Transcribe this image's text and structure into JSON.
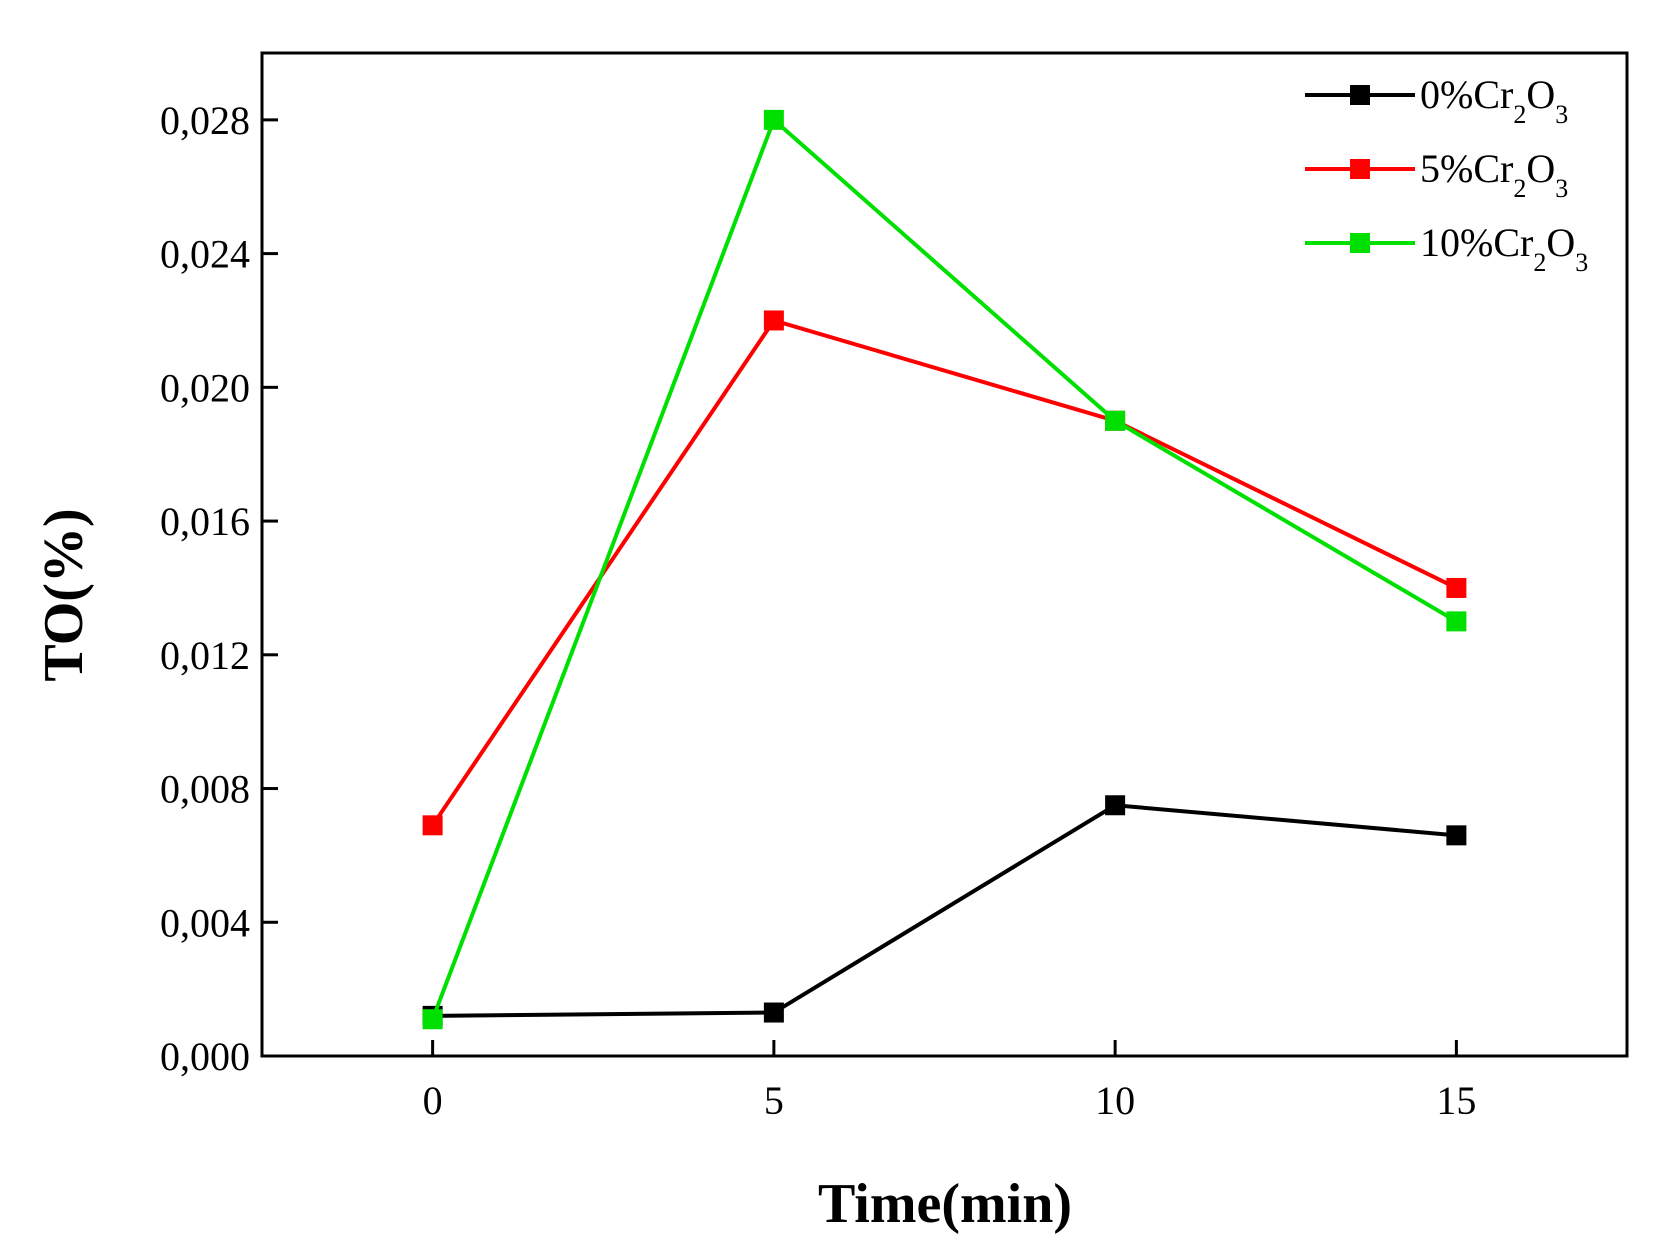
{
  "chart_data": {
    "type": "line",
    "title": "",
    "xlabel": "Time(min)",
    "ylabel": "TO(%)",
    "x": [
      0,
      5,
      10,
      15
    ],
    "xlim": [
      -2.5,
      17.5
    ],
    "ylim": [
      0.0,
      0.03
    ],
    "xticks": [
      0,
      5,
      10,
      15
    ],
    "xtick_labels": [
      "0",
      "5",
      "10",
      "15"
    ],
    "yticks": [
      0.0,
      0.004,
      0.008,
      0.012,
      0.016,
      0.02,
      0.024,
      0.028
    ],
    "ytick_labels": [
      "0,000",
      "0,004",
      "0,008",
      "0,012",
      "0,016",
      "0,020",
      "0,024",
      "0,028"
    ],
    "grid": false,
    "legend_position": "top-right",
    "series": [
      {
        "name": "0%Cr2O3",
        "label_prefix": "0%Cr",
        "sub1": "2",
        "mid": "O",
        "sub2": "3",
        "color": "#000000",
        "values": [
          0.0012,
          0.0013,
          0.0075,
          0.0066
        ]
      },
      {
        "name": "5%Cr2O3",
        "label_prefix": "5%Cr",
        "sub1": "2",
        "mid": "O",
        "sub2": "3",
        "color": "#ff0000",
        "values": [
          0.0069,
          0.022,
          0.019,
          0.014
        ]
      },
      {
        "name": "10%Cr2O3",
        "label_prefix": "10%Cr",
        "sub1": "2",
        "mid": "O",
        "sub2": "3",
        "color": "#00e000",
        "values": [
          0.0011,
          0.028,
          0.019,
          0.013
        ]
      }
    ]
  }
}
